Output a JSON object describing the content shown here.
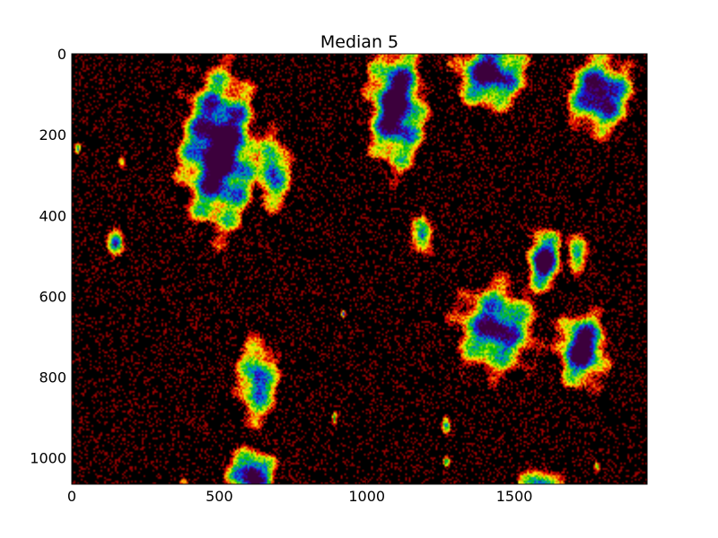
{
  "chart_data": {
    "type": "heatmap",
    "title": "Median 5",
    "xlabel": "",
    "ylabel": "",
    "xlim": [
      0,
      1950
    ],
    "ylim": [
      0,
      1065
    ],
    "y_inverted": true,
    "grid": false,
    "legend": "none",
    "background_color": "#000000",
    "colormap": "nipy_spectral",
    "x_ticks": [
      {
        "value": 0,
        "label": "0"
      },
      {
        "value": 500,
        "label": "500"
      },
      {
        "value": 1000,
        "label": "1000"
      },
      {
        "value": 1500,
        "label": "1500"
      }
    ],
    "y_ticks": [
      {
        "value": 0,
        "label": "0"
      },
      {
        "value": 200,
        "label": "200"
      },
      {
        "value": 400,
        "label": "400"
      },
      {
        "value": 600,
        "label": "600"
      },
      {
        "value": 800,
        "label": "800"
      },
      {
        "value": 1000,
        "label": "1000"
      }
    ],
    "blobs": [
      {
        "cx": 500,
        "cy": 240,
        "rx": 150,
        "ry": 230,
        "peak": 1.0
      },
      {
        "cx": 680,
        "cy": 290,
        "rx": 70,
        "ry": 110,
        "peak": 0.65
      },
      {
        "cx": 1100,
        "cy": 130,
        "rx": 110,
        "ry": 180,
        "peak": 0.95
      },
      {
        "cx": 1420,
        "cy": 50,
        "rx": 140,
        "ry": 100,
        "peak": 0.85
      },
      {
        "cx": 1790,
        "cy": 100,
        "rx": 130,
        "ry": 110,
        "peak": 0.85
      },
      {
        "cx": 1600,
        "cy": 510,
        "rx": 70,
        "ry": 90,
        "peak": 0.9
      },
      {
        "cx": 1710,
        "cy": 490,
        "rx": 40,
        "ry": 60,
        "peak": 0.55
      },
      {
        "cx": 1440,
        "cy": 680,
        "rx": 160,
        "ry": 130,
        "peak": 0.75
      },
      {
        "cx": 1730,
        "cy": 730,
        "rx": 100,
        "ry": 110,
        "peak": 0.9
      },
      {
        "cx": 630,
        "cy": 810,
        "rx": 80,
        "ry": 120,
        "peak": 0.65
      },
      {
        "cx": 1190,
        "cy": 450,
        "rx": 45,
        "ry": 55,
        "peak": 0.6
      },
      {
        "cx": 610,
        "cy": 1040,
        "rx": 90,
        "ry": 70,
        "peak": 0.9
      },
      {
        "cx": 1590,
        "cy": 1060,
        "rx": 90,
        "ry": 40,
        "peak": 0.55
      },
      {
        "cx": 150,
        "cy": 470,
        "rx": 35,
        "ry": 45,
        "peak": 0.55
      },
      {
        "cx": 1270,
        "cy": 920,
        "rx": 18,
        "ry": 28,
        "peak": 0.5
      },
      {
        "cx": 1270,
        "cy": 1010,
        "rx": 15,
        "ry": 18,
        "peak": 0.5
      },
      {
        "cx": 170,
        "cy": 270,
        "rx": 14,
        "ry": 24,
        "peak": 0.35
      },
      {
        "cx": 20,
        "cy": 235,
        "rx": 12,
        "ry": 15,
        "peak": 0.4
      },
      {
        "cx": 920,
        "cy": 645,
        "rx": 8,
        "ry": 12,
        "peak": 0.5
      },
      {
        "cx": 890,
        "cy": 900,
        "rx": 10,
        "ry": 22,
        "peak": 0.35
      },
      {
        "cx": 1780,
        "cy": 1020,
        "rx": 12,
        "ry": 18,
        "peak": 0.35
      },
      {
        "cx": 380,
        "cy": 1060,
        "rx": 20,
        "ry": 12,
        "peak": 0.3
      }
    ]
  }
}
